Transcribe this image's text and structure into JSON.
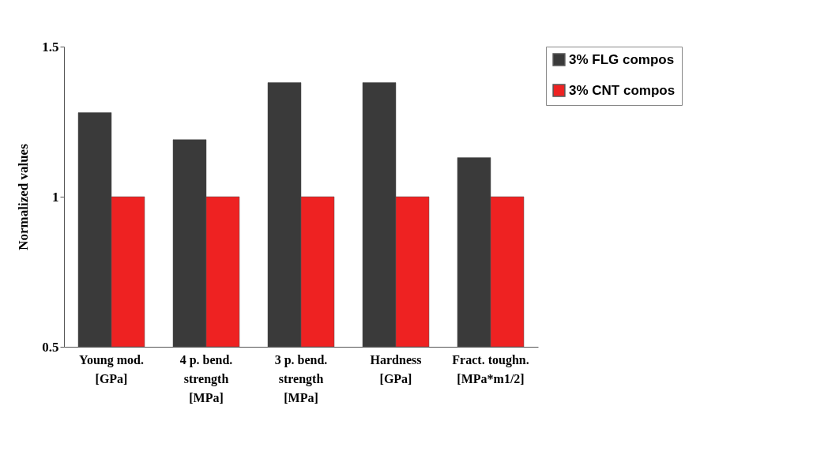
{
  "chart_data": {
    "type": "bar",
    "ylabel": "Normalized values",
    "categories": [
      "Young mod. [GPa]",
      "4 p. bend. strength [MPa]",
      "3 p. bend. strength [MPa]",
      "Hardness [GPa]",
      "Fract. toughn. [MPa*m1/2]"
    ],
    "series": [
      {
        "name": "3% FLG compos",
        "color": "#3a3a3a",
        "values": [
          1.28,
          1.19,
          1.38,
          1.38,
          1.13
        ]
      },
      {
        "name": "3% CNT compos",
        "color": "#ee2222",
        "values": [
          1,
          1,
          1,
          1,
          1
        ]
      }
    ],
    "ylim": [
      0.5,
      1.5
    ],
    "yticks": [
      0.5,
      {
        "value": 1,
        "label": "1"
      },
      1.5
    ],
    "grid": false,
    "legend": "top right"
  }
}
